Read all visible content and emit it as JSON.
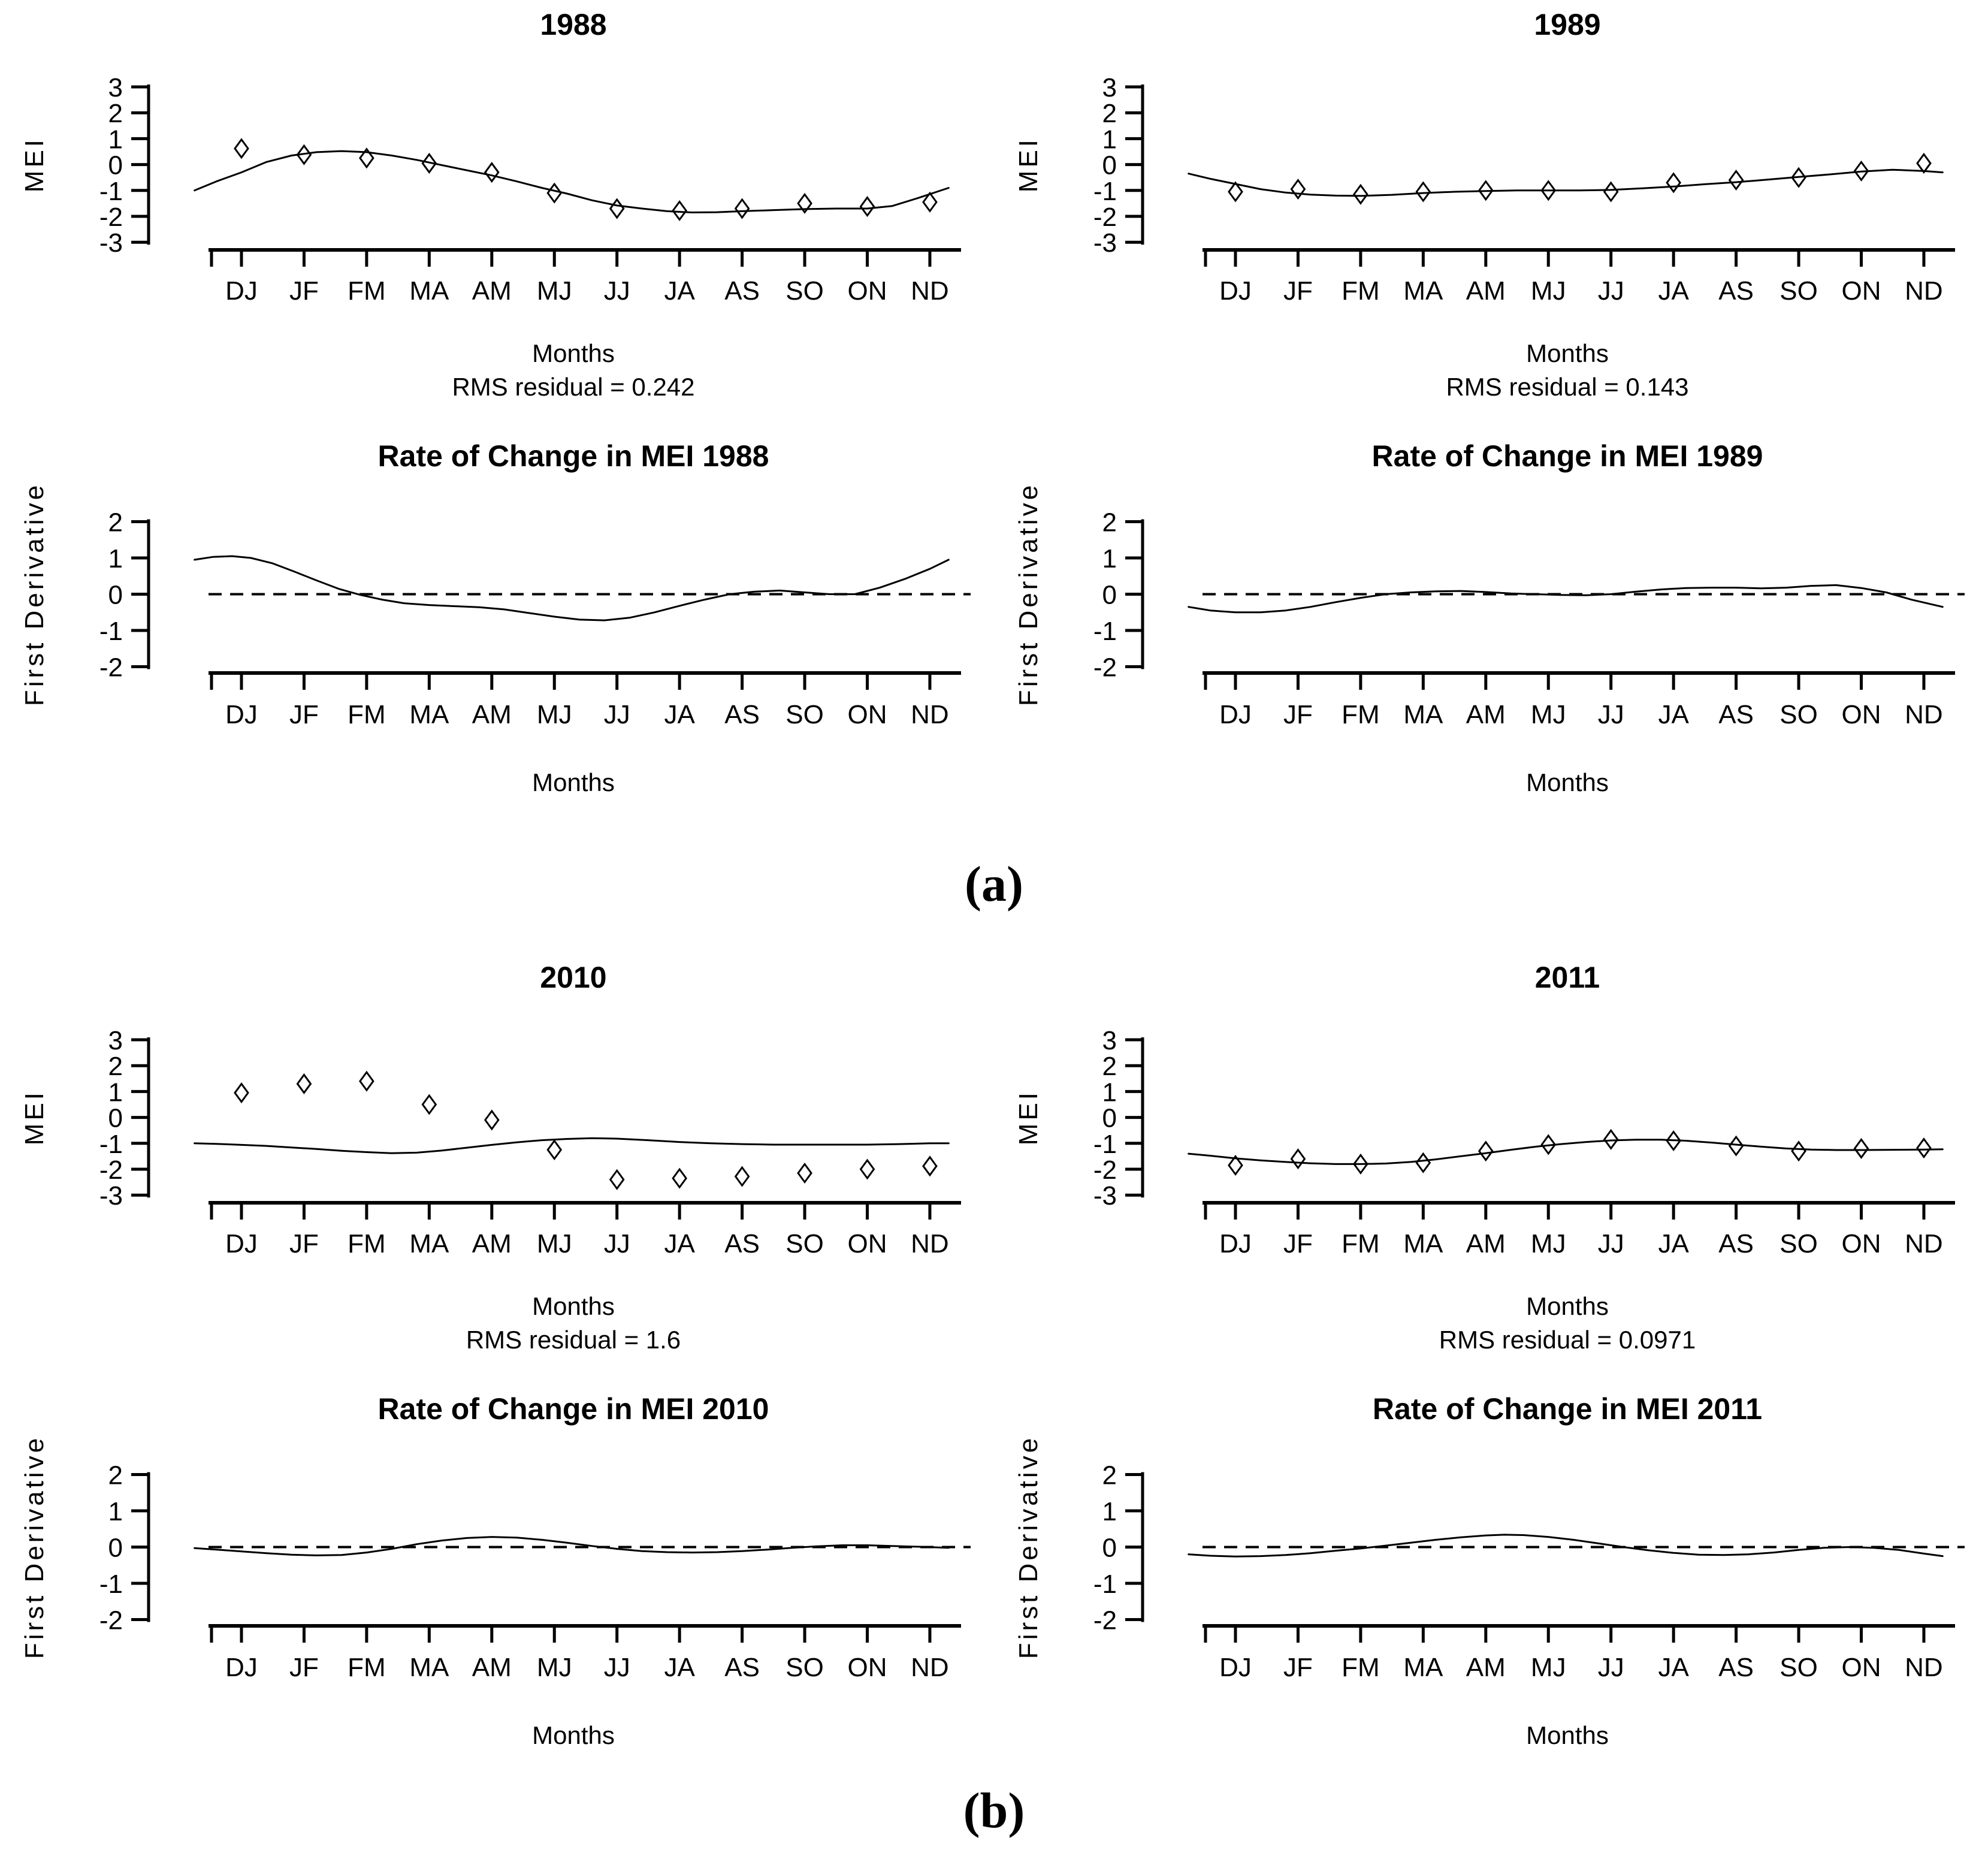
{
  "figure": {
    "background": "#ffffff",
    "ink": "#000000",
    "panels": [
      {
        "id": "a",
        "label": "(a)",
        "rows": [
          [
            "mei-1988",
            "mei-1989"
          ],
          [
            "roc-1988",
            "roc-1989"
          ]
        ]
      },
      {
        "id": "b",
        "label": "(b)",
        "rows": [
          [
            "mei-2010",
            "mei-2011"
          ],
          [
            "roc-2010",
            "roc-2011"
          ]
        ]
      }
    ]
  },
  "months": [
    "DJ",
    "JF",
    "FM",
    "MA",
    "AM",
    "MJ",
    "JJ",
    "JA",
    "AS",
    "SO",
    "ON",
    "ND"
  ],
  "chart_data": [
    {
      "id": "mei-1988",
      "kind": "mei",
      "type": "line",
      "title": "1988",
      "ylabel": "MEI",
      "xlabel": "Months",
      "subtitle": "RMS residual = 0.242",
      "ylim": [
        -3,
        3
      ],
      "yticks": [
        3,
        2,
        1,
        0,
        -1,
        -2,
        -3
      ],
      "zero_line": false,
      "marker": "open-diamond",
      "grid": false,
      "points": [
        0.62,
        0.38,
        0.25,
        0.05,
        -0.3,
        -1.1,
        -1.7,
        -1.78,
        -1.7,
        -1.5,
        -1.62,
        -1.45
      ],
      "curve": {
        "x": [
          -0.75,
          -0.4,
          0,
          0.4,
          0.8,
          1.2,
          1.6,
          2,
          2.4,
          2.8,
          3.2,
          3.6,
          4,
          4.4,
          4.8,
          5.2,
          5.6,
          6,
          6.4,
          6.8,
          7.2,
          7.6,
          8,
          8.5,
          9,
          9.5,
          10,
          10.4,
          10.8,
          11.3
        ],
        "y": [
          -1.0,
          -0.65,
          -0.3,
          0.1,
          0.35,
          0.48,
          0.52,
          0.48,
          0.35,
          0.18,
          -0.02,
          -0.22,
          -0.42,
          -0.65,
          -0.9,
          -1.12,
          -1.38,
          -1.58,
          -1.7,
          -1.8,
          -1.85,
          -1.84,
          -1.8,
          -1.76,
          -1.72,
          -1.7,
          -1.7,
          -1.6,
          -1.3,
          -0.9
        ]
      }
    },
    {
      "id": "mei-1989",
      "kind": "mei",
      "type": "line",
      "title": "1989",
      "ylabel": "MEI",
      "xlabel": "Months",
      "subtitle": "RMS residual = 0.143",
      "ylim": [
        -3,
        3
      ],
      "yticks": [
        3,
        2,
        1,
        0,
        -1,
        -2,
        -3
      ],
      "zero_line": false,
      "marker": "open-diamond",
      "grid": false,
      "points": [
        -1.05,
        -0.95,
        -1.15,
        -1.05,
        -1.0,
        -1.0,
        -1.05,
        -0.7,
        -0.6,
        -0.5,
        -0.25,
        0.05
      ],
      "curve": {
        "x": [
          -0.75,
          -0.4,
          0,
          0.4,
          0.8,
          1.2,
          1.6,
          2,
          2.5,
          3,
          3.5,
          4,
          4.5,
          5,
          5.5,
          6,
          6.5,
          7,
          7.5,
          8,
          8.5,
          9,
          9.5,
          10,
          10.5,
          11,
          11.3
        ],
        "y": [
          -0.35,
          -0.55,
          -0.75,
          -0.95,
          -1.08,
          -1.16,
          -1.2,
          -1.21,
          -1.17,
          -1.1,
          -1.05,
          -1.02,
          -1.0,
          -1.0,
          -1.0,
          -0.98,
          -0.92,
          -0.85,
          -0.76,
          -0.68,
          -0.58,
          -0.48,
          -0.38,
          -0.27,
          -0.2,
          -0.25,
          -0.3
        ]
      }
    },
    {
      "id": "roc-1988",
      "kind": "derivative",
      "type": "line",
      "title": "Rate of Change in MEI 1988",
      "ylabel": "First Derivative",
      "xlabel": "Months",
      "subtitle": null,
      "ylim": [
        -2,
        2
      ],
      "yticks": [
        2,
        1,
        0,
        -1,
        -2
      ],
      "zero_line": true,
      "marker": null,
      "grid": false,
      "points": null,
      "curve": {
        "x": [
          -0.75,
          -0.45,
          -0.15,
          0.15,
          0.5,
          0.85,
          1.2,
          1.55,
          1.9,
          2.25,
          2.6,
          3,
          3.4,
          3.8,
          4.2,
          4.6,
          5,
          5.4,
          5.8,
          6.2,
          6.6,
          7,
          7.4,
          7.8,
          8.2,
          8.6,
          9,
          9.4,
          9.8,
          10.2,
          10.6,
          11,
          11.3
        ],
        "y": [
          0.95,
          1.03,
          1.05,
          1.0,
          0.85,
          0.62,
          0.38,
          0.15,
          -0.02,
          -0.15,
          -0.25,
          -0.3,
          -0.33,
          -0.36,
          -0.42,
          -0.52,
          -0.62,
          -0.7,
          -0.72,
          -0.65,
          -0.5,
          -0.32,
          -0.15,
          0.0,
          0.07,
          0.1,
          0.05,
          0.0,
          0.0,
          0.18,
          0.42,
          0.7,
          0.95
        ]
      }
    },
    {
      "id": "roc-1989",
      "kind": "derivative",
      "type": "line",
      "title": "Rate of Change in MEI 1989",
      "ylabel": "First Derivative",
      "xlabel": "Months",
      "subtitle": null,
      "ylim": [
        -2,
        2
      ],
      "yticks": [
        2,
        1,
        0,
        -1,
        -2
      ],
      "zero_line": true,
      "marker": null,
      "grid": false,
      "points": null,
      "curve": {
        "x": [
          -0.75,
          -0.4,
          0,
          0.4,
          0.8,
          1.2,
          1.6,
          2,
          2.4,
          2.8,
          3.2,
          3.6,
          4,
          4.4,
          4.8,
          5.2,
          5.6,
          6,
          6.4,
          6.8,
          7.2,
          7.6,
          8,
          8.4,
          8.8,
          9.2,
          9.6,
          10,
          10.4,
          10.8,
          11.3
        ],
        "y": [
          -0.35,
          -0.45,
          -0.5,
          -0.5,
          -0.45,
          -0.35,
          -0.22,
          -0.1,
          0.0,
          0.05,
          0.08,
          0.09,
          0.06,
          0.02,
          0.0,
          -0.02,
          -0.03,
          0.0,
          0.07,
          0.13,
          0.17,
          0.18,
          0.18,
          0.16,
          0.18,
          0.23,
          0.25,
          0.17,
          0.05,
          -0.15,
          -0.35
        ]
      }
    },
    {
      "id": "mei-2010",
      "kind": "mei",
      "type": "line",
      "title": "2010",
      "ylabel": "MEI",
      "xlabel": "Months",
      "subtitle": "RMS residual = 1.6",
      "ylim": [
        -3,
        3
      ],
      "yticks": [
        3,
        2,
        1,
        0,
        -1,
        -2,
        -3
      ],
      "zero_line": false,
      "marker": "open-diamond",
      "grid": false,
      "points": [
        0.95,
        1.3,
        1.4,
        0.5,
        -0.1,
        -1.25,
        -2.4,
        -2.35,
        -2.28,
        -2.15,
        -2.0,
        -1.88
      ],
      "curve": {
        "x": [
          -0.75,
          -0.4,
          0,
          0.4,
          0.8,
          1.2,
          1.6,
          2,
          2.4,
          2.8,
          3.2,
          3.6,
          4,
          4.4,
          4.8,
          5.2,
          5.6,
          6,
          6.5,
          7,
          7.5,
          8,
          8.5,
          9,
          9.5,
          10,
          10.5,
          11,
          11.3
        ],
        "y": [
          -1.0,
          -1.02,
          -1.06,
          -1.1,
          -1.16,
          -1.22,
          -1.29,
          -1.34,
          -1.38,
          -1.36,
          -1.28,
          -1.17,
          -1.06,
          -0.96,
          -0.88,
          -0.83,
          -0.8,
          -0.82,
          -0.88,
          -0.95,
          -1.0,
          -1.03,
          -1.05,
          -1.05,
          -1.05,
          -1.05,
          -1.03,
          -1.0,
          -1.0
        ]
      }
    },
    {
      "id": "mei-2011",
      "kind": "mei",
      "type": "line",
      "title": "2011",
      "ylabel": "MEI",
      "xlabel": "Months",
      "subtitle": "RMS residual = 0.0971",
      "ylim": [
        -3,
        3
      ],
      "yticks": [
        3,
        2,
        1,
        0,
        -1,
        -2,
        -3
      ],
      "zero_line": false,
      "marker": "open-diamond",
      "grid": false,
      "points": [
        -1.85,
        -1.6,
        -1.8,
        -1.75,
        -1.3,
        -1.05,
        -0.85,
        -0.9,
        -1.1,
        -1.3,
        -1.2,
        -1.18
      ],
      "curve": {
        "x": [
          -0.75,
          -0.4,
          0,
          0.4,
          0.8,
          1.2,
          1.6,
          2,
          2.4,
          2.8,
          3.2,
          3.6,
          4,
          4.4,
          4.8,
          5.2,
          5.6,
          6,
          6.4,
          6.8,
          7.2,
          7.6,
          8,
          8.4,
          8.8,
          9.2,
          9.6,
          10,
          10.5,
          11,
          11.3
        ],
        "y": [
          -1.4,
          -1.48,
          -1.58,
          -1.66,
          -1.72,
          -1.77,
          -1.8,
          -1.8,
          -1.78,
          -1.72,
          -1.62,
          -1.5,
          -1.38,
          -1.25,
          -1.13,
          -1.03,
          -0.95,
          -0.89,
          -0.86,
          -0.86,
          -0.9,
          -0.97,
          -1.05,
          -1.13,
          -1.2,
          -1.24,
          -1.26,
          -1.26,
          -1.25,
          -1.24,
          -1.23
        ]
      }
    },
    {
      "id": "roc-2010",
      "kind": "derivative",
      "type": "line",
      "title": "Rate of Change in MEI 2010",
      "ylabel": "First Derivative",
      "xlabel": "Months",
      "subtitle": null,
      "ylim": [
        -2,
        2
      ],
      "yticks": [
        2,
        1,
        0,
        -1,
        -2
      ],
      "zero_line": true,
      "marker": null,
      "grid": false,
      "points": null,
      "curve": {
        "x": [
          -0.75,
          -0.4,
          0,
          0.4,
          0.8,
          1.2,
          1.6,
          2,
          2.4,
          2.8,
          3.2,
          3.6,
          4,
          4.4,
          4.8,
          5.2,
          5.6,
          6,
          6.4,
          6.8,
          7.2,
          7.6,
          8,
          8.4,
          8.8,
          9.2,
          9.6,
          10,
          10.4,
          10.8,
          11.3
        ],
        "y": [
          -0.03,
          -0.07,
          -0.12,
          -0.17,
          -0.21,
          -0.23,
          -0.22,
          -0.15,
          -0.05,
          0.08,
          0.18,
          0.25,
          0.28,
          0.26,
          0.2,
          0.12,
          0.03,
          -0.05,
          -0.11,
          -0.14,
          -0.15,
          -0.14,
          -0.11,
          -0.07,
          -0.02,
          0.02,
          0.05,
          0.05,
          0.03,
          0.01,
          -0.02
        ]
      }
    },
    {
      "id": "roc-2011",
      "kind": "derivative",
      "type": "line",
      "title": "Rate of Change in MEI 2011",
      "ylabel": "First Derivative",
      "xlabel": "Months",
      "subtitle": null,
      "ylim": [
        -2,
        2
      ],
      "yticks": [
        2,
        1,
        0,
        -1,
        -2
      ],
      "zero_line": true,
      "marker": null,
      "grid": false,
      "points": null,
      "curve": {
        "x": [
          -0.75,
          -0.4,
          0,
          0.4,
          0.8,
          1.2,
          1.6,
          2,
          2.4,
          2.8,
          3.2,
          3.6,
          4,
          4.3,
          4.6,
          5,
          5.4,
          5.8,
          6.2,
          6.6,
          7,
          7.4,
          7.8,
          8.2,
          8.6,
          9,
          9.4,
          9.8,
          10.2,
          10.6,
          11,
          11.3
        ],
        "y": [
          -0.2,
          -0.24,
          -0.26,
          -0.25,
          -0.22,
          -0.17,
          -0.1,
          -0.04,
          0.04,
          0.12,
          0.2,
          0.27,
          0.32,
          0.34,
          0.33,
          0.28,
          0.2,
          0.1,
          0.0,
          -0.09,
          -0.16,
          -0.21,
          -0.22,
          -0.2,
          -0.15,
          -0.08,
          -0.02,
          0.0,
          -0.02,
          -0.08,
          -0.18,
          -0.25
        ]
      }
    }
  ]
}
